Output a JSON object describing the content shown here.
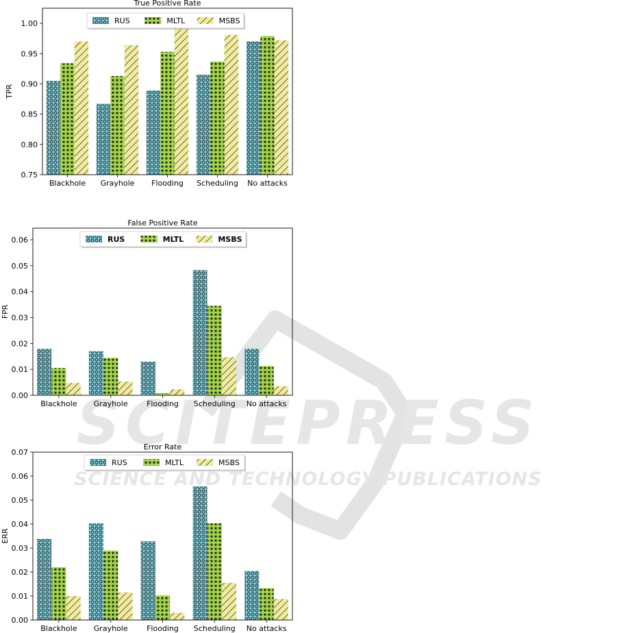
{
  "watermark": {
    "brand": "SCITEPRESS",
    "tagline": "SCIENCE AND TECHNOLOGY PUBLICATIONS"
  },
  "colors": {
    "RUS": "#7ecad6",
    "MLTL": "#a6d84a",
    "MSBS": "#f1ec9d",
    "hatch": "#1a1a1a",
    "axis": "#000000"
  },
  "chart_data": [
    {
      "type": "bar",
      "title": "True Positive Rate",
      "xlabel": "",
      "ylabel": "TPR",
      "categories": [
        "Blackhole",
        "Grayhole",
        "Flooding",
        "Scheduling",
        "No attacks"
      ],
      "ylim": [
        0.75,
        1.025
      ],
      "yticks": [
        "0.75",
        "0.80",
        "0.85",
        "0.90",
        "0.95",
        "1.00"
      ],
      "legend_position": "top-center",
      "legend_bold": false,
      "series": [
        {
          "name": "RUS",
          "pattern": "circles",
          "values": [
            0.905,
            0.867,
            0.889,
            0.915,
            0.97
          ]
        },
        {
          "name": "MLTL",
          "pattern": "stars",
          "values": [
            0.934,
            0.913,
            0.953,
            0.937,
            0.979
          ]
        },
        {
          "name": "MSBS",
          "pattern": "diagonal",
          "values": [
            0.97,
            0.964,
            0.997,
            0.981,
            0.972
          ]
        }
      ],
      "grid": false
    },
    {
      "type": "bar",
      "title": "False Positive Rate",
      "xlabel": "",
      "ylabel": "FPR",
      "categories": [
        "Blackhole",
        "Grayhole",
        "Flooding",
        "Scheduling",
        "No attacks"
      ],
      "ylim": [
        0.0,
        0.0645
      ],
      "yticks": [
        "0.00",
        "0.01",
        "0.02",
        "0.03",
        "0.04",
        "0.05",
        "0.06"
      ],
      "legend_position": "top-center",
      "legend_bold": true,
      "series": [
        {
          "name": "RUS",
          "pattern": "circles",
          "values": [
            0.018,
            0.017,
            0.013,
            0.0483,
            0.018
          ]
        },
        {
          "name": "MLTL",
          "pattern": "stars",
          "values": [
            0.0105,
            0.0145,
            0.0008,
            0.0345,
            0.0113
          ]
        },
        {
          "name": "MSBS",
          "pattern": "diagonal",
          "values": [
            0.0048,
            0.0053,
            0.0023,
            0.0147,
            0.0035
          ]
        }
      ],
      "grid": false
    },
    {
      "type": "bar",
      "title": "Error Rate",
      "xlabel": "",
      "ylabel": "ERR",
      "categories": [
        "Blackhole",
        "Grayhole",
        "Flooding",
        "Scheduling",
        "No attacks"
      ],
      "ylim": [
        0.0,
        0.07
      ],
      "yticks": [
        "0.00",
        "0.01",
        "0.02",
        "0.03",
        "0.04",
        "0.05",
        "0.06",
        "0.07"
      ],
      "legend_position": "top-center",
      "legend_bold": false,
      "series": [
        {
          "name": "RUS",
          "pattern": "circles",
          "values": [
            0.0338,
            0.0403,
            0.0328,
            0.0557,
            0.0205
          ]
        },
        {
          "name": "MLTL",
          "pattern": "stars",
          "values": [
            0.022,
            0.029,
            0.0103,
            0.0403,
            0.0133
          ]
        },
        {
          "name": "MSBS",
          "pattern": "diagonal",
          "values": [
            0.01,
            0.0115,
            0.003,
            0.0155,
            0.0088
          ]
        }
      ],
      "grid": false
    }
  ]
}
